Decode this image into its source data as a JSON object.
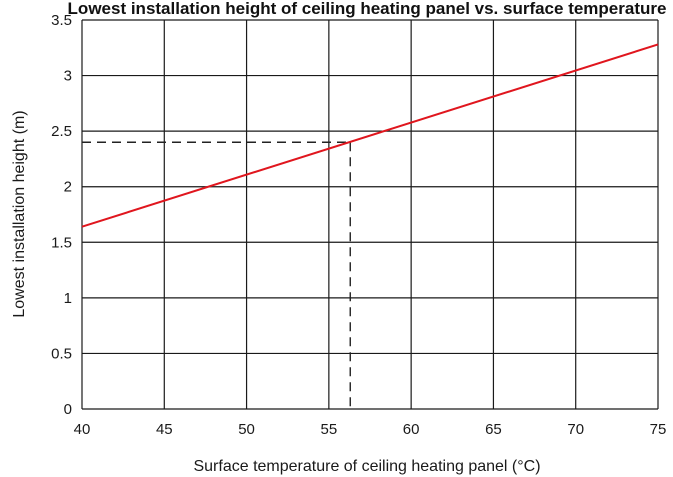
{
  "chart_data": {
    "type": "line",
    "title": "Lowest installation height of ceiling heating panel vs. surface temperature",
    "xlabel": "Surface temperature of ceiling heating panel (°C)",
    "ylabel": "Lowest installation height (m)",
    "xlim": [
      40,
      75
    ],
    "ylim": [
      0,
      3.5
    ],
    "x_ticks": [
      40,
      45,
      50,
      55,
      60,
      65,
      70,
      75
    ],
    "y_ticks": [
      0,
      0.5,
      1,
      1.5,
      2,
      2.5,
      3,
      3.5
    ],
    "x_tick_labels": [
      "40",
      "45",
      "50",
      "55",
      "60",
      "65",
      "70",
      "75"
    ],
    "y_tick_labels": [
      "0",
      "0.5",
      "1",
      "1.5",
      "2",
      "2.5",
      "3",
      "3.5"
    ],
    "grid": true,
    "series": [
      {
        "x": [
          40,
          75
        ],
        "y": [
          1.64,
          3.28
        ],
        "color": "#e0161e"
      }
    ],
    "annotations": [
      {
        "type": "dashed-guide",
        "x": 56.3,
        "y": 2.4,
        "color": "#222222"
      }
    ]
  }
}
